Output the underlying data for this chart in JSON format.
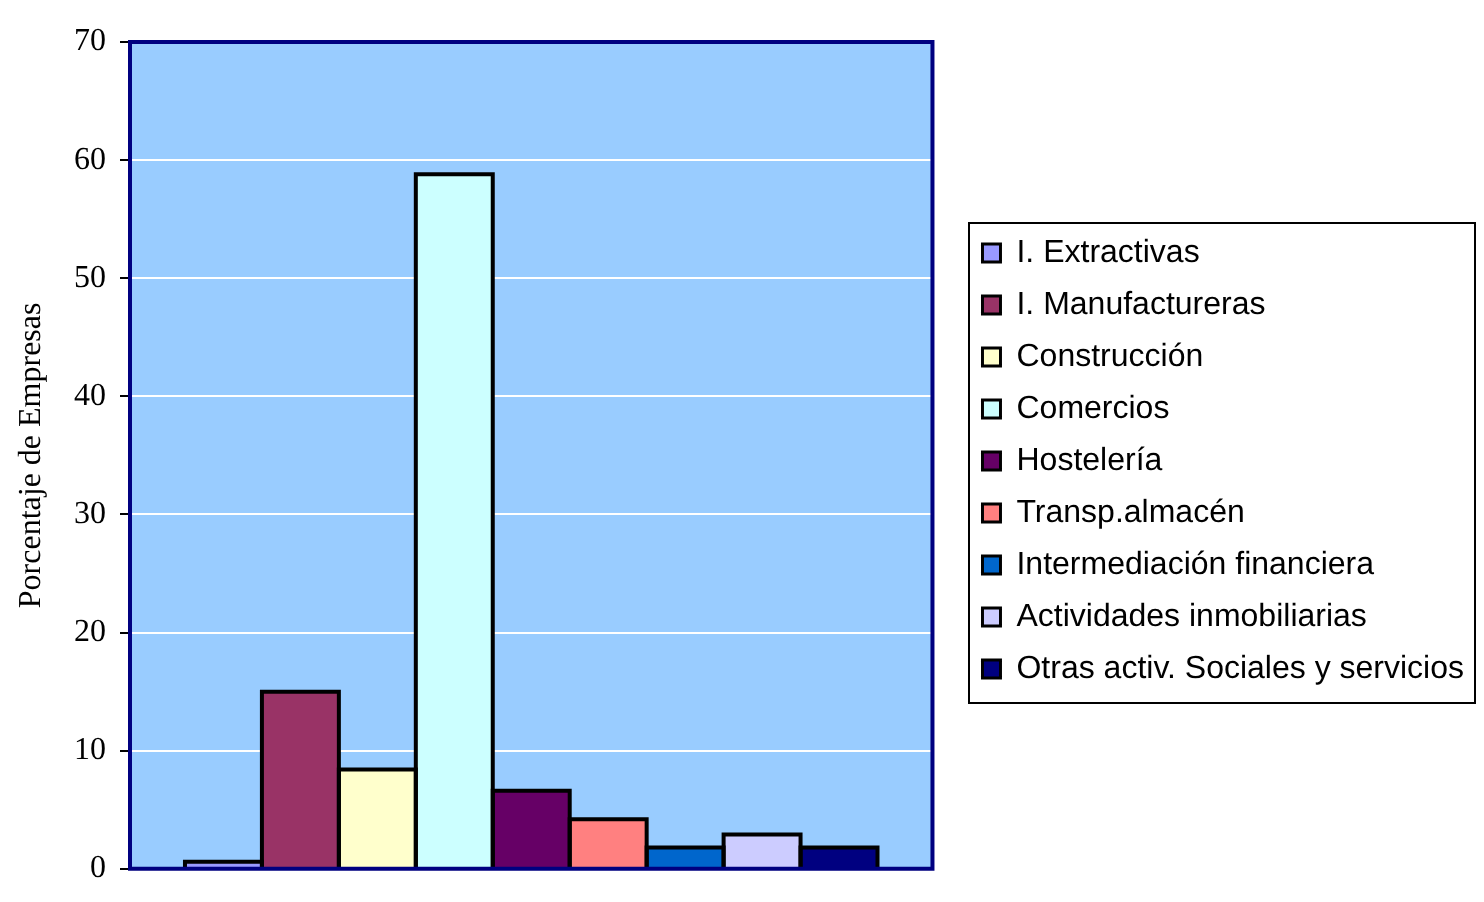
{
  "chart_data": {
    "type": "bar",
    "ylabel": "Porcentaje de Empresas",
    "categories": [
      null
    ],
    "series": [
      {
        "name": "I. Extractivas",
        "color": "#9999ff",
        "values": [
          0.6
        ]
      },
      {
        "name": "I. Manufactureras",
        "color": "#993366",
        "values": [
          15.0
        ]
      },
      {
        "name": "Construcción",
        "color": "#ffffcc",
        "values": [
          8.4
        ]
      },
      {
        "name": "Comercios",
        "color": "#ccffff",
        "values": [
          58.8
        ]
      },
      {
        "name": "Hostelería",
        "color": "#660066",
        "values": [
          6.6
        ]
      },
      {
        "name": "Transp.almacén",
        "color": "#ff8080",
        "values": [
          4.2
        ]
      },
      {
        "name": "Intermediación financiera",
        "color": "#0066cc",
        "values": [
          1.8
        ]
      },
      {
        "name": "Actividades inmobiliarias",
        "color": "#ccccff",
        "values": [
          2.9
        ]
      },
      {
        "name": "Otras activ. Sociales y servicios",
        "color": "#000080",
        "values": [
          1.8
        ]
      }
    ],
    "ylim": [
      0,
      70
    ],
    "yticks": [
      0,
      10,
      20,
      30,
      40,
      50,
      60,
      70
    ],
    "grid": "y",
    "legend": "right"
  }
}
